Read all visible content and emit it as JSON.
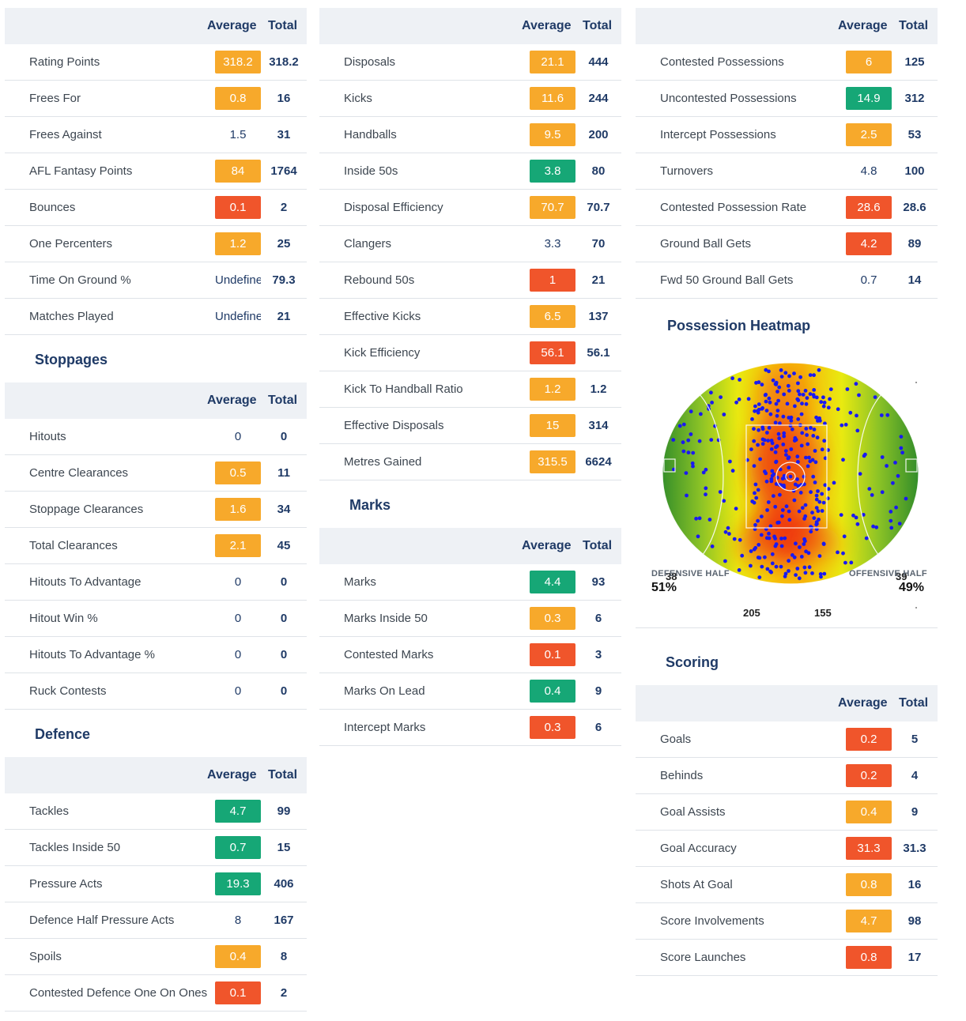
{
  "headers": {
    "average": "Average",
    "total": "Total"
  },
  "general": {
    "rows": [
      {
        "label": "Rating Points",
        "avg": "318.2",
        "tot": "318.2",
        "color": "orange"
      },
      {
        "label": "Frees For",
        "avg": "0.8",
        "tot": "16",
        "color": "orange"
      },
      {
        "label": "Frees Against",
        "avg": "1.5",
        "tot": "31",
        "color": "none"
      },
      {
        "label": "AFL Fantasy Points",
        "avg": "84",
        "tot": "1764",
        "color": "orange"
      },
      {
        "label": "Bounces",
        "avg": "0.1",
        "tot": "2",
        "color": "red"
      },
      {
        "label": "One Percenters",
        "avg": "1.2",
        "tot": "25",
        "color": "orange"
      },
      {
        "label": "Time On Ground %",
        "avg": "Undefine",
        "tot": "79.3",
        "color": "none"
      },
      {
        "label": "Matches Played",
        "avg": "Undefine",
        "tot": "21",
        "color": "none"
      }
    ]
  },
  "stoppages": {
    "title": "Stoppages",
    "rows": [
      {
        "label": "Hitouts",
        "avg": "0",
        "tot": "0",
        "color": "none"
      },
      {
        "label": "Centre Clearances",
        "avg": "0.5",
        "tot": "11",
        "color": "orange"
      },
      {
        "label": "Stoppage Clearances",
        "avg": "1.6",
        "tot": "34",
        "color": "orange"
      },
      {
        "label": "Total Clearances",
        "avg": "2.1",
        "tot": "45",
        "color": "orange"
      },
      {
        "label": "Hitouts To Advantage",
        "avg": "0",
        "tot": "0",
        "color": "none"
      },
      {
        "label": "Hitout Win %",
        "avg": "0",
        "tot": "0",
        "color": "none"
      },
      {
        "label": "Hitouts To Advantage %",
        "avg": "0",
        "tot": "0",
        "color": "none"
      },
      {
        "label": "Ruck Contests",
        "avg": "0",
        "tot": "0",
        "color": "none"
      }
    ]
  },
  "defence": {
    "title": "Defence",
    "rows": [
      {
        "label": "Tackles",
        "avg": "4.7",
        "tot": "99",
        "color": "green"
      },
      {
        "label": "Tackles Inside 50",
        "avg": "0.7",
        "tot": "15",
        "color": "green"
      },
      {
        "label": "Pressure Acts",
        "avg": "19.3",
        "tot": "406",
        "color": "green"
      },
      {
        "label": "Defence Half Pressure Acts",
        "avg": "8",
        "tot": "167",
        "color": "none"
      },
      {
        "label": "Spoils",
        "avg": "0.4",
        "tot": "8",
        "color": "orange"
      },
      {
        "label": "Contested Defence One On Ones",
        "avg": "0.1",
        "tot": "2",
        "color": "red"
      }
    ]
  },
  "disposals": {
    "rows": [
      {
        "label": "Disposals",
        "avg": "21.1",
        "tot": "444",
        "color": "orange"
      },
      {
        "label": "Kicks",
        "avg": "11.6",
        "tot": "244",
        "color": "orange"
      },
      {
        "label": "Handballs",
        "avg": "9.5",
        "tot": "200",
        "color": "orange"
      },
      {
        "label": "Inside 50s",
        "avg": "3.8",
        "tot": "80",
        "color": "green"
      },
      {
        "label": "Disposal Efficiency",
        "avg": "70.7",
        "tot": "70.7",
        "color": "orange"
      },
      {
        "label": "Clangers",
        "avg": "3.3",
        "tot": "70",
        "color": "none"
      },
      {
        "label": "Rebound 50s",
        "avg": "1",
        "tot": "21",
        "color": "red"
      },
      {
        "label": "Effective Kicks",
        "avg": "6.5",
        "tot": "137",
        "color": "orange"
      },
      {
        "label": "Kick Efficiency",
        "avg": "56.1",
        "tot": "56.1",
        "color": "red"
      },
      {
        "label": "Kick To Handball Ratio",
        "avg": "1.2",
        "tot": "1.2",
        "color": "orange"
      },
      {
        "label": "Effective Disposals",
        "avg": "15",
        "tot": "314",
        "color": "orange"
      },
      {
        "label": "Metres Gained",
        "avg": "315.5",
        "tot": "6624",
        "color": "orange"
      }
    ]
  },
  "marks": {
    "title": "Marks",
    "rows": [
      {
        "label": "Marks",
        "avg": "4.4",
        "tot": "93",
        "color": "green"
      },
      {
        "label": "Marks Inside 50",
        "avg": "0.3",
        "tot": "6",
        "color": "orange"
      },
      {
        "label": "Contested Marks",
        "avg": "0.1",
        "tot": "3",
        "color": "red"
      },
      {
        "label": "Marks On Lead",
        "avg": "0.4",
        "tot": "9",
        "color": "green"
      },
      {
        "label": "Intercept Marks",
        "avg": "0.3",
        "tot": "6",
        "color": "red"
      }
    ]
  },
  "possessions": {
    "rows": [
      {
        "label": "Contested Possessions",
        "avg": "6",
        "tot": "125",
        "color": "orange"
      },
      {
        "label": "Uncontested Possessions",
        "avg": "14.9",
        "tot": "312",
        "color": "green"
      },
      {
        "label": "Intercept Possessions",
        "avg": "2.5",
        "tot": "53",
        "color": "orange"
      },
      {
        "label": "Turnovers",
        "avg": "4.8",
        "tot": "100",
        "color": "none"
      },
      {
        "label": "Contested Possession Rate",
        "avg": "28.6",
        "tot": "28.6",
        "color": "red"
      },
      {
        "label": "Ground Ball Gets",
        "avg": "4.2",
        "tot": "89",
        "color": "red"
      },
      {
        "label": "Fwd 50 Ground Ball Gets",
        "avg": "0.7",
        "tot": "14",
        "color": "none"
      }
    ]
  },
  "heatmap": {
    "title": "Possession Heatmap",
    "left_count": "38",
    "right_count": "39",
    "bottom_left_count": "205",
    "bottom_right_count": "155",
    "defensive_label": "DEFENSIVE HALF",
    "defensive_pct": "51%",
    "offensive_label": "OFFENSIVE HALF",
    "offensive_pct": "49%"
  },
  "scoring": {
    "title": "Scoring",
    "rows": [
      {
        "label": "Goals",
        "avg": "0.2",
        "tot": "5",
        "color": "red"
      },
      {
        "label": "Behinds",
        "avg": "0.2",
        "tot": "4",
        "color": "red"
      },
      {
        "label": "Goal Assists",
        "avg": "0.4",
        "tot": "9",
        "color": "orange"
      },
      {
        "label": "Goal Accuracy",
        "avg": "31.3",
        "tot": "31.3",
        "color": "red"
      },
      {
        "label": "Shots At Goal",
        "avg": "0.8",
        "tot": "16",
        "color": "orange"
      },
      {
        "label": "Score Involvements",
        "avg": "4.7",
        "tot": "98",
        "color": "orange"
      },
      {
        "label": "Score Launches",
        "avg": "0.8",
        "tot": "17",
        "color": "red"
      }
    ]
  },
  "colors": {
    "orange": "#f7a92b",
    "green": "#16a776",
    "red": "#f0552b"
  }
}
